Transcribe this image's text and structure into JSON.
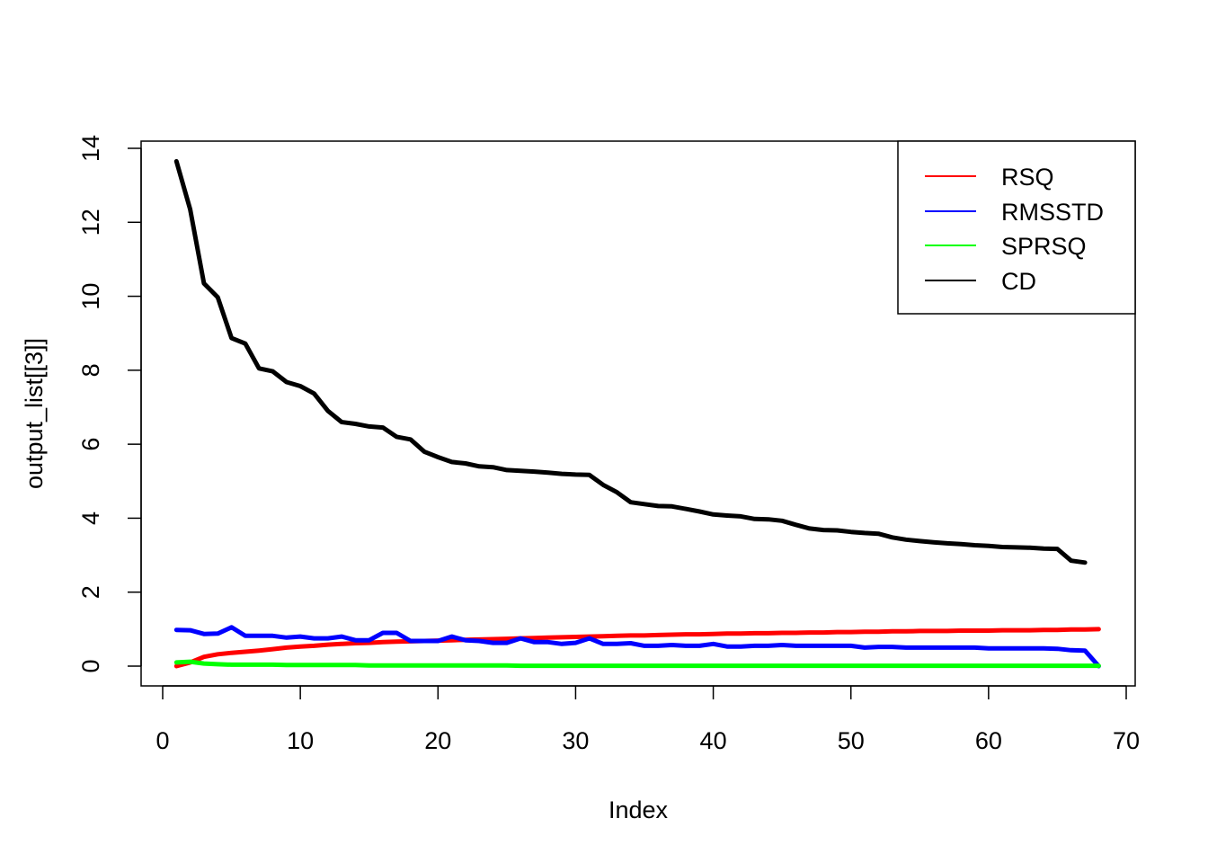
{
  "chart_data": {
    "type": "line",
    "title": "",
    "xlabel": "Index",
    "ylabel": "output_list[[3]]",
    "xlim": [
      0,
      70
    ],
    "ylim": [
      0,
      14
    ],
    "x_ticks": [
      0,
      10,
      20,
      30,
      40,
      50,
      60,
      70
    ],
    "y_ticks": [
      0,
      2,
      4,
      6,
      8,
      10,
      12,
      14
    ],
    "grid": false,
    "legend_position": "top-right",
    "series": [
      {
        "name": "RSQ",
        "color": "#ff0000",
        "x": [
          1,
          2,
          3,
          4,
          5,
          6,
          7,
          8,
          9,
          10,
          11,
          12,
          13,
          14,
          15,
          16,
          17,
          18,
          19,
          20,
          21,
          22,
          23,
          24,
          25,
          26,
          27,
          28,
          29,
          30,
          31,
          32,
          33,
          34,
          35,
          36,
          37,
          38,
          39,
          40,
          41,
          42,
          43,
          44,
          45,
          46,
          47,
          48,
          49,
          50,
          51,
          52,
          53,
          54,
          55,
          56,
          57,
          58,
          59,
          60,
          61,
          62,
          63,
          64,
          65,
          66,
          67,
          68
        ],
        "values": [
          0.0,
          0.1,
          0.25,
          0.32,
          0.36,
          0.39,
          0.42,
          0.46,
          0.5,
          0.53,
          0.55,
          0.58,
          0.6,
          0.62,
          0.63,
          0.65,
          0.66,
          0.67,
          0.68,
          0.69,
          0.7,
          0.71,
          0.72,
          0.73,
          0.74,
          0.75,
          0.76,
          0.77,
          0.78,
          0.79,
          0.8,
          0.81,
          0.82,
          0.83,
          0.83,
          0.84,
          0.85,
          0.86,
          0.86,
          0.87,
          0.88,
          0.88,
          0.89,
          0.89,
          0.9,
          0.9,
          0.91,
          0.91,
          0.92,
          0.92,
          0.93,
          0.93,
          0.94,
          0.94,
          0.95,
          0.95,
          0.95,
          0.96,
          0.96,
          0.96,
          0.97,
          0.97,
          0.97,
          0.98,
          0.98,
          0.99,
          0.99,
          1.0
        ]
      },
      {
        "name": "RMSSTD",
        "color": "#0000ff",
        "x": [
          1,
          2,
          3,
          4,
          5,
          6,
          7,
          8,
          9,
          10,
          11,
          12,
          13,
          14,
          15,
          16,
          17,
          18,
          19,
          20,
          21,
          22,
          23,
          24,
          25,
          26,
          27,
          28,
          29,
          30,
          31,
          32,
          33,
          34,
          35,
          36,
          37,
          38,
          39,
          40,
          41,
          42,
          43,
          44,
          45,
          46,
          47,
          48,
          49,
          50,
          51,
          52,
          53,
          54,
          55,
          56,
          57,
          58,
          59,
          60,
          61,
          62,
          63,
          64,
          65,
          66,
          67,
          68
        ],
        "values": [
          0.98,
          0.97,
          0.87,
          0.88,
          1.05,
          0.82,
          0.82,
          0.82,
          0.77,
          0.8,
          0.75,
          0.75,
          0.8,
          0.7,
          0.7,
          0.9,
          0.9,
          0.68,
          0.68,
          0.68,
          0.8,
          0.7,
          0.68,
          0.63,
          0.63,
          0.75,
          0.65,
          0.65,
          0.6,
          0.63,
          0.75,
          0.6,
          0.6,
          0.62,
          0.55,
          0.55,
          0.57,
          0.55,
          0.55,
          0.6,
          0.53,
          0.53,
          0.55,
          0.55,
          0.57,
          0.55,
          0.55,
          0.55,
          0.55,
          0.55,
          0.5,
          0.52,
          0.52,
          0.5,
          0.5,
          0.5,
          0.5,
          0.5,
          0.5,
          0.48,
          0.48,
          0.48,
          0.48,
          0.48,
          0.47,
          0.43,
          0.42,
          0.0
        ]
      },
      {
        "name": "SPRSQ",
        "color": "#00ff00",
        "x": [
          1,
          2,
          3,
          4,
          5,
          6,
          7,
          8,
          9,
          10,
          11,
          12,
          13,
          14,
          15,
          16,
          17,
          18,
          19,
          20,
          21,
          22,
          23,
          24,
          25,
          26,
          27,
          28,
          29,
          30,
          31,
          32,
          33,
          34,
          35,
          36,
          37,
          38,
          39,
          40,
          41,
          42,
          43,
          44,
          45,
          46,
          47,
          48,
          49,
          50,
          51,
          52,
          53,
          54,
          55,
          56,
          57,
          58,
          59,
          60,
          61,
          62,
          63,
          64,
          65,
          66,
          67,
          68
        ],
        "values": [
          0.1,
          0.12,
          0.07,
          0.05,
          0.04,
          0.04,
          0.04,
          0.04,
          0.03,
          0.03,
          0.03,
          0.03,
          0.03,
          0.03,
          0.02,
          0.02,
          0.02,
          0.02,
          0.02,
          0.02,
          0.02,
          0.02,
          0.02,
          0.02,
          0.02,
          0.01,
          0.01,
          0.01,
          0.01,
          0.01,
          0.01,
          0.01,
          0.01,
          0.01,
          0.01,
          0.01,
          0.01,
          0.01,
          0.01,
          0.01,
          0.01,
          0.01,
          0.01,
          0.01,
          0.01,
          0.01,
          0.01,
          0.01,
          0.01,
          0.01,
          0.01,
          0.01,
          0.01,
          0.01,
          0.01,
          0.01,
          0.01,
          0.01,
          0.01,
          0.01,
          0.01,
          0.01,
          0.01,
          0.01,
          0.01,
          0.01,
          0.01,
          0.01
        ]
      },
      {
        "name": "CD",
        "color": "#000000",
        "x": [
          1,
          2,
          3,
          4,
          5,
          6,
          7,
          8,
          9,
          10,
          11,
          12,
          13,
          14,
          15,
          16,
          17,
          18,
          19,
          20,
          21,
          22,
          23,
          24,
          25,
          26,
          27,
          28,
          29,
          30,
          31,
          32,
          33,
          34,
          35,
          36,
          37,
          38,
          39,
          40,
          41,
          42,
          43,
          44,
          45,
          46,
          47,
          48,
          49,
          50,
          51,
          52,
          53,
          54,
          55,
          56,
          57,
          58,
          59,
          60,
          61,
          62,
          63,
          64,
          65,
          66,
          67
        ],
        "values": [
          13.65,
          12.35,
          10.35,
          9.97,
          8.87,
          8.72,
          8.05,
          7.97,
          7.68,
          7.57,
          7.37,
          6.9,
          6.6,
          6.55,
          6.48,
          6.45,
          6.2,
          6.13,
          5.8,
          5.65,
          5.52,
          5.48,
          5.4,
          5.38,
          5.3,
          5.28,
          5.26,
          5.23,
          5.2,
          5.18,
          5.17,
          4.9,
          4.7,
          4.43,
          4.38,
          4.33,
          4.32,
          4.25,
          4.18,
          4.1,
          4.07,
          4.05,
          3.98,
          3.97,
          3.93,
          3.82,
          3.72,
          3.68,
          3.67,
          3.63,
          3.6,
          3.58,
          3.48,
          3.42,
          3.38,
          3.35,
          3.32,
          3.3,
          3.27,
          3.25,
          3.22,
          3.21,
          3.2,
          3.18,
          3.17,
          2.85,
          2.8
        ]
      }
    ]
  }
}
